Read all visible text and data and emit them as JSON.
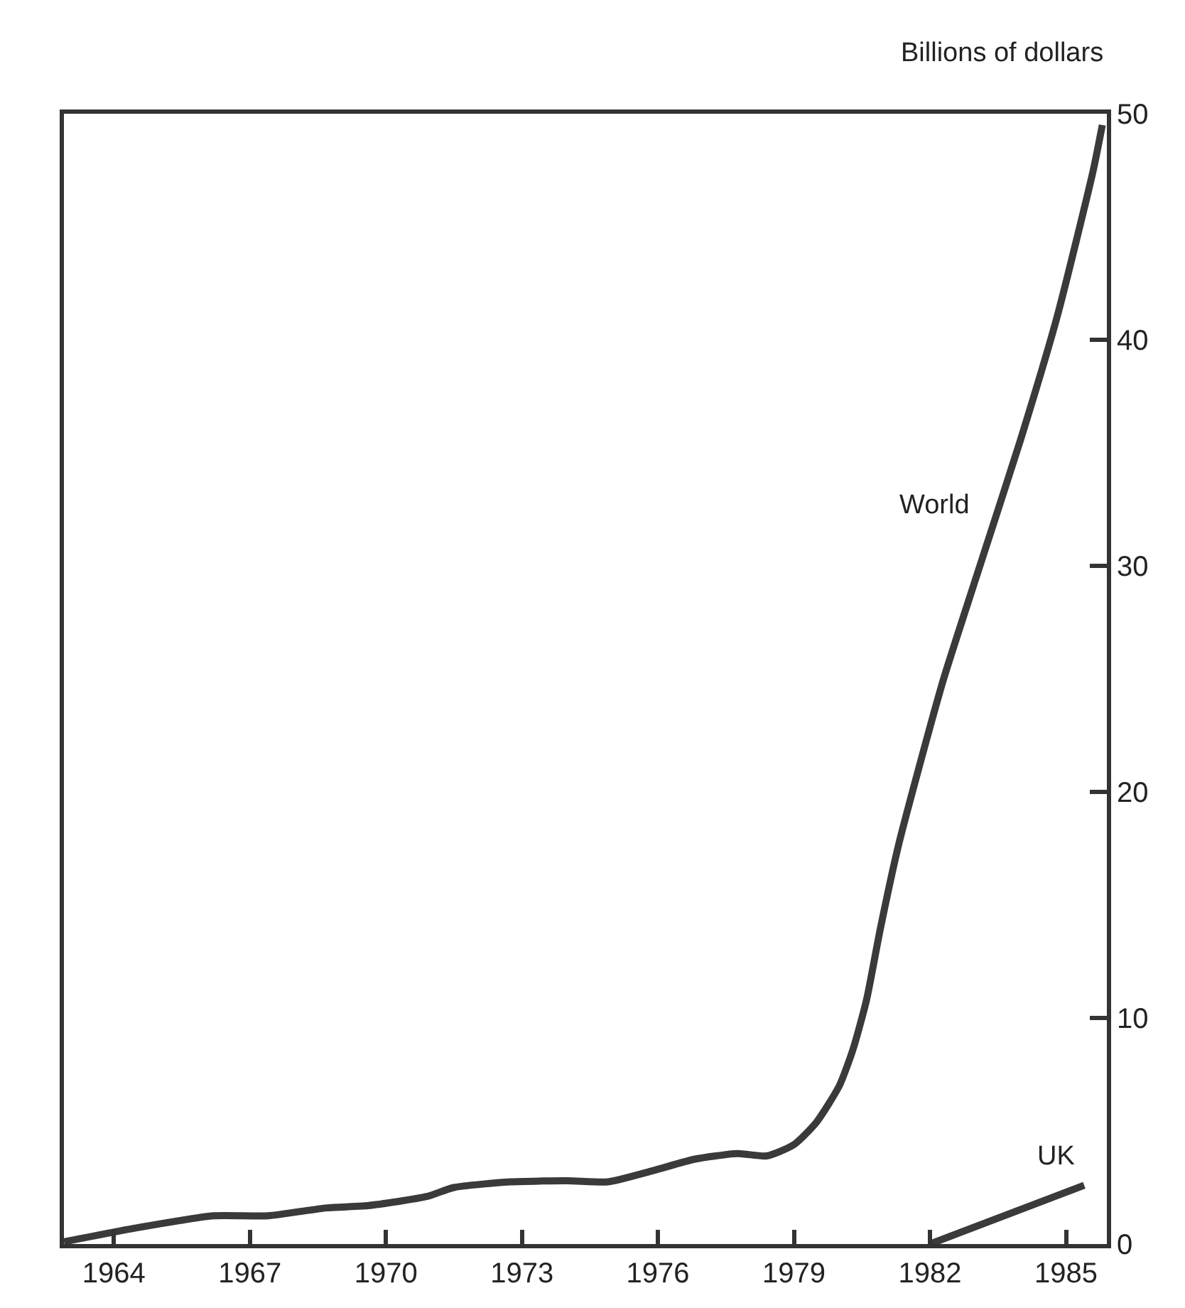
{
  "chart_data": {
    "type": "line",
    "ylabel": "Billions of dollars",
    "xlim": [
      1962.9,
      1985.9
    ],
    "xticks": [
      1964,
      1967,
      1970,
      1973,
      1976,
      1979,
      1982,
      1985
    ],
    "ylim": [
      0,
      50
    ],
    "yticks": [
      0,
      10,
      20,
      30,
      40,
      50
    ],
    "legend": false,
    "marker": "none",
    "line_style": "solid",
    "series": [
      {
        "name": "World",
        "color": "#3a3a3a",
        "x": [
          1962.9,
          1964.6,
          1966.2,
          1967.4,
          1968.7,
          1969.6,
          1970.9,
          1971.5,
          1972.75,
          1974,
          1974.9,
          1975.9,
          1976.8,
          1977.75,
          1978.4,
          1979,
          1979.5,
          1980,
          1980.3,
          1980.6,
          1980.9,
          1981.3,
          1981.8,
          1982.3,
          1983.1,
          1984,
          1984.8,
          1985.6,
          1985.8
        ],
        "values": [
          0.1,
          0.75,
          1.25,
          1.25,
          1.6,
          1.7,
          2.1,
          2.5,
          2.75,
          2.8,
          2.75,
          3.25,
          3.75,
          4.0,
          3.9,
          4.4,
          5.4,
          7,
          8.6,
          10.8,
          13.9,
          17.6,
          21.4,
          25,
          30,
          35.6,
          41,
          47.5,
          49.5
        ]
      },
      {
        "name": "UK",
        "color": "#3a3a3a",
        "x": [
          1982,
          1985.4
        ],
        "values": [
          0,
          2.6
        ]
      }
    ]
  }
}
